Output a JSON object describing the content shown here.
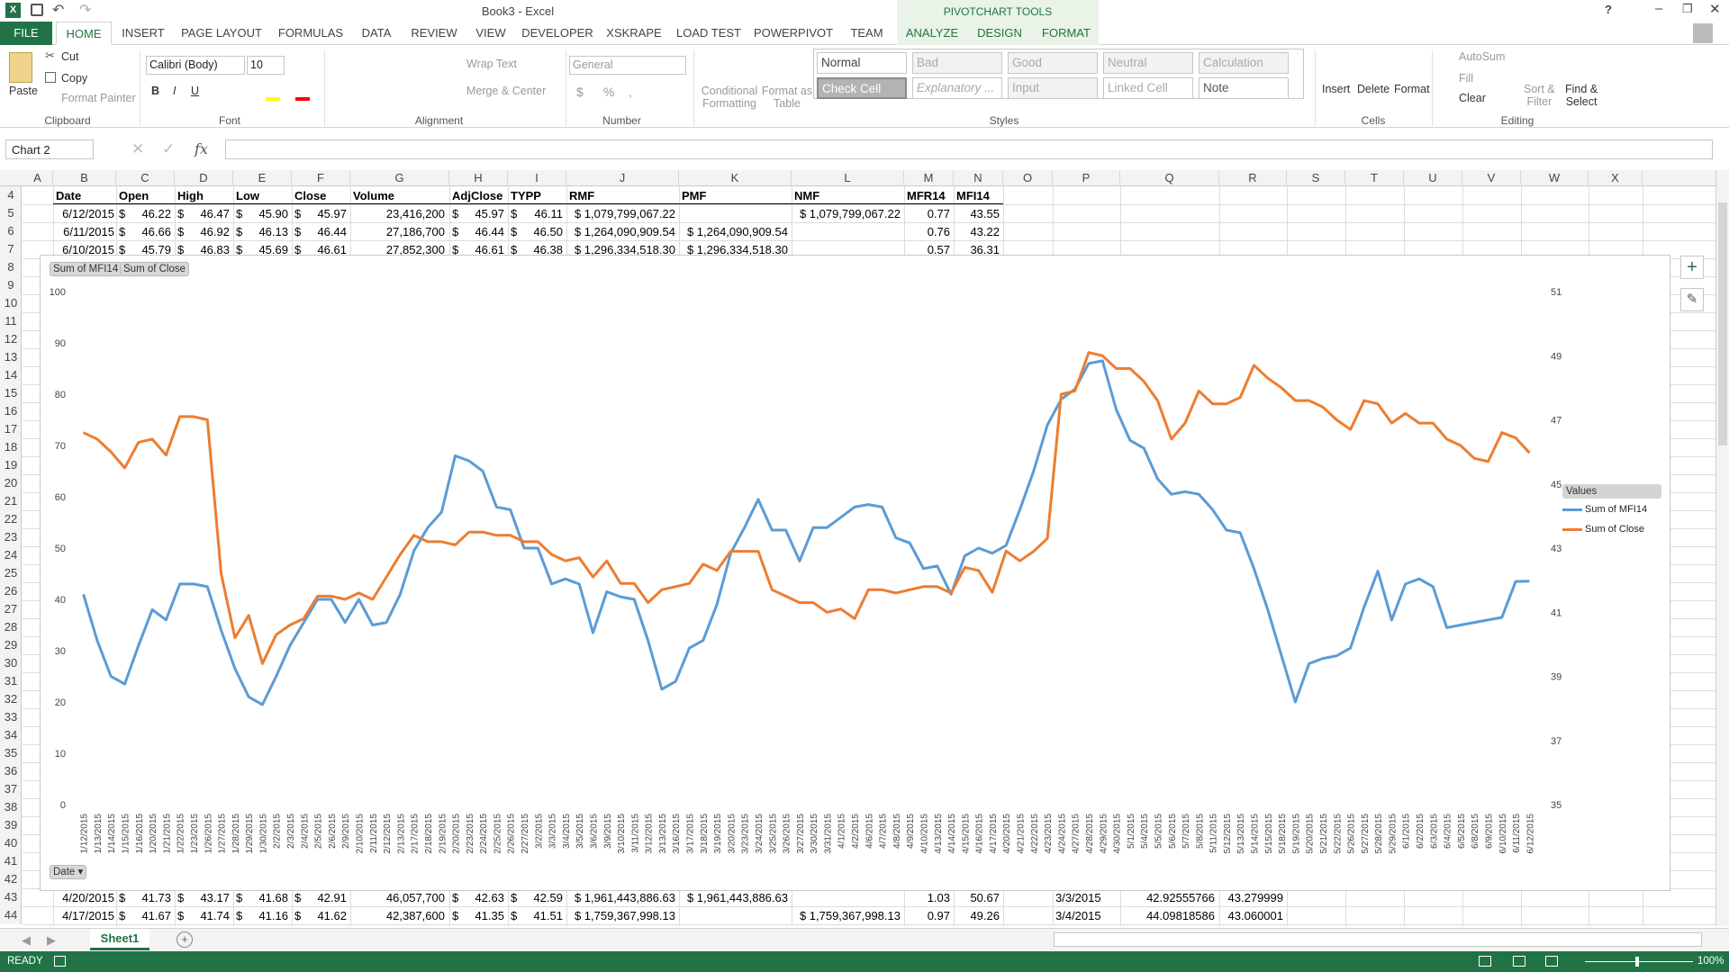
{
  "window": {
    "title": "Book3 - Excel",
    "controls": [
      "?",
      "▣",
      "–",
      "❐",
      "✕"
    ]
  },
  "tabs": {
    "file": "FILE",
    "home": "HOME",
    "insert": "INSERT",
    "page_layout": "PAGE LAYOUT",
    "formulas": "FORMULAS",
    "data": "DATA",
    "review": "REVIEW",
    "view": "VIEW",
    "developer": "DEVELOPER",
    "xskrape": "XSKRAPE",
    "load_test": "LOAD TEST",
    "powerpivot": "POWERPIVOT",
    "team": "TEAM",
    "pivot_tools": "PIVOTCHART TOOLS",
    "analyze": "ANALYZE",
    "design": "DESIGN",
    "format": "FORMAT"
  },
  "ribbon": {
    "clipboard": {
      "paste": "Paste",
      "cut": "Cut",
      "copy": "Copy",
      "format_painter": "Format Painter",
      "label": "Clipboard"
    },
    "font": {
      "name": "Calibri (Body)",
      "size": "10",
      "bold": "B",
      "italic": "I",
      "underline": "U",
      "label": "Font"
    },
    "alignment": {
      "wrap": "Wrap Text",
      "merge": "Merge & Center",
      "label": "Alignment"
    },
    "number": {
      "format": "General",
      "currency": "$",
      "percent": "%",
      "comma": ",",
      "label": "Number"
    },
    "styles": {
      "conditional": "Conditional",
      "formatting": "Formatting",
      "format_as": "Format as",
      "table": "Table",
      "label": "Styles",
      "cells": [
        "Normal",
        "Bad",
        "Good",
        "Neutral",
        "Calculation",
        "Check Cell",
        "Explanatory ...",
        "Input",
        "Linked Cell",
        "Note"
      ]
    },
    "cells": {
      "insert": "Insert",
      "delete": "Delete",
      "format": "Format",
      "label": "Cells"
    },
    "editing": {
      "autosum": "AutoSum",
      "fill": "Fill",
      "clear": "Clear",
      "sort": "Sort &",
      "filter": "Filter",
      "find": "Find &",
      "select": "Select",
      "label": "Editing"
    }
  },
  "formula_bar": {
    "name_box": "Chart 2",
    "fx": "fx",
    "value": ""
  },
  "columns": [
    "A",
    "B",
    "C",
    "D",
    "E",
    "F",
    "G",
    "H",
    "I",
    "J",
    "K",
    "L",
    "M",
    "N",
    "O",
    "P",
    "Q",
    "R",
    "S",
    "T",
    "U",
    "V",
    "W",
    "X"
  ],
  "rows": [
    "4",
    "5",
    "6",
    "7",
    "8",
    "9",
    "10",
    "11",
    "12",
    "13",
    "14",
    "15",
    "16",
    "17",
    "18",
    "19",
    "20",
    "21",
    "22",
    "23",
    "24",
    "25",
    "26",
    "27",
    "28",
    "29",
    "30",
    "31",
    "32",
    "33",
    "34",
    "35",
    "36",
    "37",
    "38",
    "39",
    "40",
    "41",
    "42",
    "43",
    "44"
  ],
  "table": {
    "headers": [
      "Date",
      "Open",
      "High",
      "Low",
      "Close",
      "Volume",
      "AdjClose",
      "TYPP",
      "RMF",
      "PMF",
      "NMF",
      "MFR14",
      "MFI14"
    ],
    "rows": [
      [
        "6/12/2015",
        "$",
        "46.22",
        "$",
        "46.47",
        "$",
        "45.90",
        "$",
        "45.97",
        "23,416,200",
        "$",
        "45.97",
        "$",
        "46.11",
        "$ 1,079,799,067.22",
        "",
        "$ 1,079,799,067.22",
        "0.77",
        "43.55"
      ],
      [
        "6/11/2015",
        "$",
        "46.66",
        "$",
        "46.92",
        "$",
        "46.13",
        "$",
        "46.44",
        "27,186,700",
        "$",
        "46.44",
        "$",
        "46.50",
        "$ 1,264,090,909.54",
        "$ 1,264,090,909.54",
        "",
        "0.76",
        "43.22"
      ],
      [
        "6/10/2015",
        "$",
        "45.79",
        "$",
        "46.83",
        "$",
        "45.69",
        "$",
        "46.61",
        "27,852,300",
        "$",
        "46.61",
        "$",
        "46.38",
        "$ 1,296,334,518.30",
        "$ 1,296,334,518.30",
        "",
        "0.57",
        "36.31"
      ]
    ],
    "bottom_rows": [
      [
        "4/20/2015",
        "$",
        "41.73",
        "$",
        "43.17",
        "$",
        "41.68",
        "$",
        "42.91",
        "46,057,700",
        "$",
        "42.63",
        "$",
        "42.59",
        "$ 1,961,443,886.63",
        "$ 1,961,443,886.63",
        "",
        "1.03",
        "50.67",
        "3/3/2015",
        "42.92555766",
        "43.279999"
      ],
      [
        "4/17/2015",
        "$",
        "41.67",
        "$",
        "41.74",
        "$",
        "41.16",
        "$",
        "41.62",
        "42,387,600",
        "$",
        "41.35",
        "$",
        "41.51",
        "$ 1,759,367,998.13",
        "",
        "$ 1,759,367,998.13",
        "0.97",
        "49.26",
        "3/4/2015",
        "44.09818586",
        "43.060001"
      ]
    ]
  },
  "chart_filters": {
    "field1": "Sum of MFI14",
    "field2": "Sum of Close",
    "axis_field": "Date ▾"
  },
  "chart_data": {
    "type": "line",
    "title": "",
    "legend_title": "Values",
    "legend_position": "right",
    "y_left": {
      "min": 0,
      "max": 100,
      "ticks": [
        0,
        10,
        20,
        30,
        40,
        50,
        60,
        70,
        80,
        90,
        100
      ]
    },
    "y_right": {
      "min": 35,
      "max": 51,
      "ticks": [
        35,
        37,
        39,
        41,
        43,
        45,
        47,
        49,
        51
      ]
    },
    "grid": false,
    "x": [
      "1/12/2015",
      "1/13/2015",
      "1/14/2015",
      "1/15/2015",
      "1/16/2015",
      "1/20/2015",
      "1/21/2015",
      "1/22/2015",
      "1/23/2015",
      "1/26/2015",
      "1/27/2015",
      "1/28/2015",
      "1/29/2015",
      "1/30/2015",
      "2/2/2015",
      "2/3/2015",
      "2/4/2015",
      "2/5/2015",
      "2/6/2015",
      "2/9/2015",
      "2/10/2015",
      "2/11/2015",
      "2/12/2015",
      "2/13/2015",
      "2/17/2015",
      "2/18/2015",
      "2/19/2015",
      "2/20/2015",
      "2/23/2015",
      "2/24/2015",
      "2/25/2015",
      "2/26/2015",
      "2/27/2015",
      "3/2/2015",
      "3/3/2015",
      "3/4/2015",
      "3/5/2015",
      "3/6/2015",
      "3/9/2015",
      "3/10/2015",
      "3/11/2015",
      "3/12/2015",
      "3/13/2015",
      "3/16/2015",
      "3/17/2015",
      "3/18/2015",
      "3/19/2015",
      "3/20/2015",
      "3/23/2015",
      "3/24/2015",
      "3/25/2015",
      "3/26/2015",
      "3/27/2015",
      "3/30/2015",
      "3/31/2015",
      "4/1/2015",
      "4/2/2015",
      "4/6/2015",
      "4/7/2015",
      "4/8/2015",
      "4/9/2015",
      "4/10/2015",
      "4/13/2015",
      "4/14/2015",
      "4/15/2015",
      "4/16/2015",
      "4/17/2015",
      "4/20/2015",
      "4/21/2015",
      "4/22/2015",
      "4/23/2015",
      "4/24/2015",
      "4/27/2015",
      "4/28/2015",
      "4/29/2015",
      "4/30/2015",
      "5/1/2015",
      "5/4/2015",
      "5/5/2015",
      "5/6/2015",
      "5/7/2015",
      "5/8/2015",
      "5/11/2015",
      "5/12/2015",
      "5/13/2015",
      "5/14/2015",
      "5/15/2015",
      "5/18/2015",
      "5/19/2015",
      "5/20/2015",
      "5/21/2015",
      "5/22/2015",
      "5/26/2015",
      "5/27/2015",
      "5/28/2015",
      "5/29/2015",
      "6/1/2015",
      "6/2/2015",
      "6/3/2015",
      "6/4/2015",
      "6/5/2015",
      "6/8/2015",
      "6/9/2015",
      "6/10/2015",
      "6/11/2015",
      "6/12/2015"
    ],
    "series": [
      {
        "name": "Sum of MFI14",
        "color": "#5b9bd5",
        "axis": "left",
        "values": [
          41,
          32,
          25,
          23.5,
          31,
          38,
          36,
          43,
          43,
          42.5,
          34,
          26.5,
          21,
          19.5,
          25,
          31,
          35.5,
          40,
          40,
          35.5,
          40,
          35,
          35.5,
          41,
          49.5,
          54,
          57,
          68,
          67,
          65,
          58,
          57.5,
          50,
          50,
          43,
          44,
          43,
          33.5,
          41.5,
          40.5,
          40,
          32,
          22.5,
          24,
          30.5,
          32,
          39,
          49,
          54,
          59.5,
          53.5,
          53.5,
          47.5,
          54,
          54,
          56,
          58,
          58.5,
          58,
          52,
          51,
          46,
          46.5,
          41,
          48.5,
          50,
          49,
          50.5,
          57.5,
          65,
          74,
          79,
          81,
          86,
          86.5,
          77,
          71,
          69.5,
          63.5,
          60.5,
          61,
          60.5,
          57.5,
          53.5,
          53,
          46,
          38,
          29,
          20,
          27.5,
          28.5,
          29,
          30.5,
          38.5,
          45.5,
          36,
          43,
          44,
          42.5,
          34.5,
          35,
          35.5,
          36,
          36.5,
          43.5,
          43.55
        ]
      },
      {
        "name": "Sum of Close",
        "color": "#ed7d31",
        "axis": "right",
        "values": [
          46.6,
          46.4,
          46.0,
          45.5,
          46.3,
          46.4,
          45.9,
          47.1,
          47.1,
          47.0,
          42.2,
          40.2,
          40.9,
          39.4,
          40.3,
          40.6,
          40.8,
          41.5,
          41.5,
          41.4,
          41.6,
          41.4,
          42.1,
          42.8,
          43.4,
          43.2,
          43.2,
          43.1,
          43.5,
          43.5,
          43.4,
          43.4,
          43.2,
          43.2,
          42.8,
          42.6,
          42.7,
          42.1,
          42.6,
          41.9,
          41.9,
          41.3,
          41.7,
          41.8,
          41.9,
          42.5,
          42.3,
          42.9,
          42.9,
          42.9,
          41.7,
          41.5,
          41.3,
          41.3,
          41.0,
          41.1,
          40.8,
          41.7,
          41.7,
          41.6,
          41.7,
          41.8,
          41.8,
          41.6,
          42.4,
          42.3,
          41.62,
          42.91,
          42.6,
          42.9,
          43.3,
          47.8,
          47.9,
          49.1,
          49.0,
          48.6,
          48.6,
          48.2,
          47.6,
          46.4,
          46.9,
          47.9,
          47.5,
          47.5,
          47.7,
          48.7,
          48.3,
          48.0,
          47.6,
          47.6,
          47.4,
          47.0,
          46.7,
          47.6,
          47.5,
          46.9,
          47.2,
          46.9,
          46.9,
          46.4,
          46.2,
          45.8,
          45.7,
          46.6,
          46.44,
          45.97
        ]
      }
    ]
  },
  "sheet": {
    "tab": "Sheet1",
    "status": "READY",
    "zoom": "100%"
  }
}
